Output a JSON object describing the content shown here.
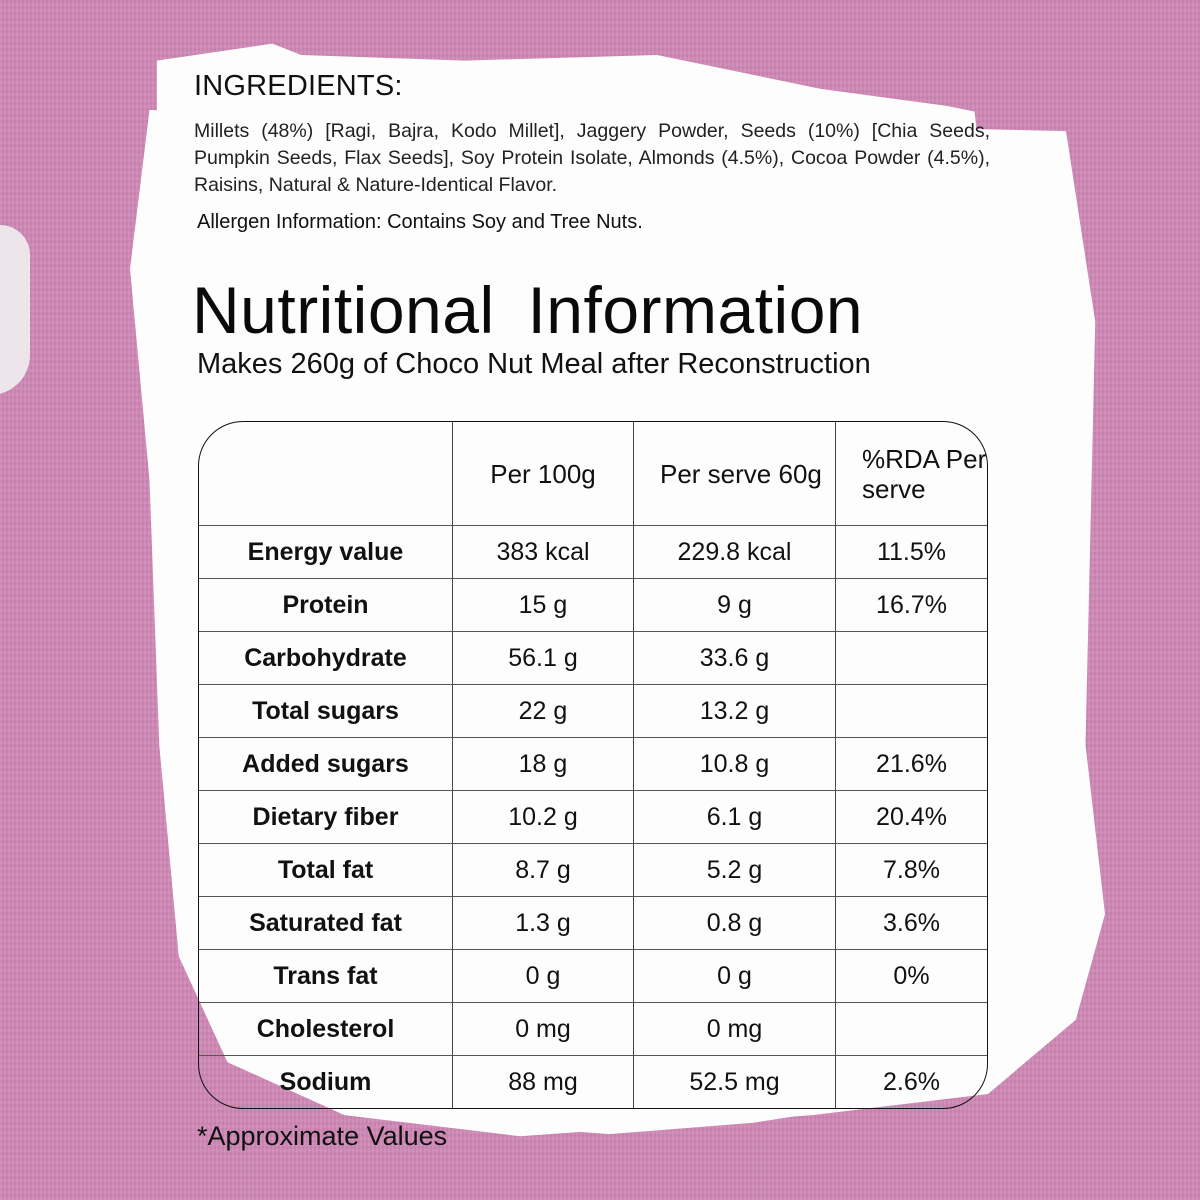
{
  "ingredients": {
    "title": "INGREDIENTS:",
    "text": "Millets (48%) [Ragi, Bajra, Kodo Millet], Jaggery Powder, Seeds (10%) [Chia Seeds, Pumpkin Seeds, Flax Seeds], Soy Protein Isolate, Almonds (4.5%), Cocoa Powder (4.5%), Raisins, Natural & Nature-Identical Flavor.",
    "allergen": "Allergen Information: Contains Soy and Tree Nuts."
  },
  "nutrition": {
    "title": "Nutritional  Information",
    "subtitle": "Makes 260g of Choco Nut Meal after Reconstruction",
    "headers": [
      "",
      "Per 100g",
      "Per serve 60g",
      "%RDA Per serve"
    ],
    "rows": [
      {
        "label": "Energy value",
        "per100": "383 kcal",
        "perServe": "229.8  kcal",
        "rda": "11.5%"
      },
      {
        "label": "Protein",
        "per100": "15 g",
        "perServe": "9 g",
        "rda": "16.7%"
      },
      {
        "label": "Carbohydrate",
        "per100": "56.1 g",
        "perServe": "33.6 g",
        "rda": ""
      },
      {
        "label": "Total sugars",
        "per100": "22 g",
        "perServe": "13.2 g",
        "rda": ""
      },
      {
        "label": "Added sugars",
        "per100": "18 g",
        "perServe": "10.8 g",
        "rda": "21.6%"
      },
      {
        "label": "Dietary fiber",
        "per100": "10.2 g",
        "perServe": "6.1 g",
        "rda": "20.4%"
      },
      {
        "label": "Total fat",
        "per100": "8.7 g",
        "perServe": "5.2 g",
        "rda": "7.8%"
      },
      {
        "label": "Saturated fat",
        "per100": "1.3 g",
        "perServe": "0.8 g",
        "rda": "3.6%"
      },
      {
        "label": "Trans fat",
        "per100": "0 g",
        "perServe": "0 g",
        "rda": "0%"
      },
      {
        "label": "Cholesterol",
        "per100": "0 mg",
        "perServe": "0 mg",
        "rda": ""
      },
      {
        "label": "Sodium",
        "per100": "88 mg",
        "perServe": "52.5 mg",
        "rda": "2.6%"
      }
    ],
    "footnote": "*Approximate Values"
  },
  "colors": {
    "background": "#cf88b6",
    "paper": "#fdfdfd",
    "text": "#111111"
  }
}
